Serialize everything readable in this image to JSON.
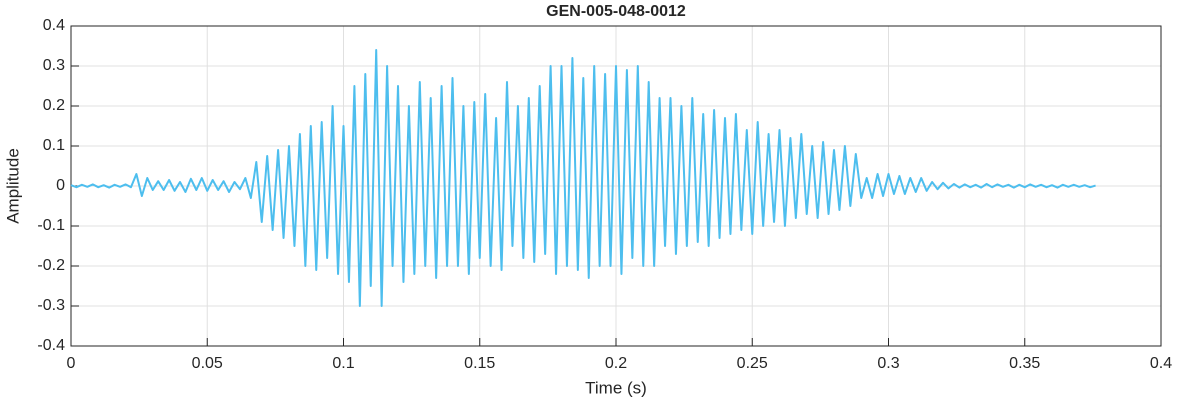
{
  "chart_data": {
    "type": "line",
    "title": "GEN-005-048-0012",
    "xlabel": "Time (s)",
    "ylabel": "Amplitude",
    "color": "#4dbeee",
    "grid": true,
    "xlim": [
      0,
      0.4
    ],
    "xticks": [
      0,
      0.05,
      0.1,
      0.15,
      0.2,
      0.25,
      0.3,
      0.35,
      0.4
    ],
    "ylim": [
      -0.4,
      0.4
    ],
    "yticks": [
      -0.4,
      -0.3,
      -0.2,
      -0.1,
      0,
      0.1,
      0.2,
      0.3,
      0.4
    ],
    "x": [
      0,
      0.002,
      0.004,
      0.006,
      0.008,
      0.01,
      0.012,
      0.014,
      0.016,
      0.018,
      0.02,
      0.022,
      0.024,
      0.026,
      0.028,
      0.03,
      0.032,
      0.034,
      0.036,
      0.038,
      0.04,
      0.042,
      0.044,
      0.046,
      0.048,
      0.05,
      0.052,
      0.054,
      0.056,
      0.058,
      0.06,
      0.062,
      0.064,
      0.066,
      0.068,
      0.07,
      0.072,
      0.074,
      0.076,
      0.078,
      0.08,
      0.082,
      0.084,
      0.086,
      0.088,
      0.09,
      0.092,
      0.094,
      0.096,
      0.098,
      0.1,
      0.102,
      0.104,
      0.106,
      0.108,
      0.11,
      0.112,
      0.114,
      0.116,
      0.118,
      0.12,
      0.122,
      0.124,
      0.126,
      0.128,
      0.13,
      0.132,
      0.134,
      0.136,
      0.138,
      0.14,
      0.142,
      0.144,
      0.146,
      0.148,
      0.15,
      0.152,
      0.154,
      0.156,
      0.158,
      0.16,
      0.162,
      0.164,
      0.166,
      0.168,
      0.17,
      0.172,
      0.174,
      0.176,
      0.178,
      0.18,
      0.182,
      0.184,
      0.186,
      0.188,
      0.19,
      0.192,
      0.194,
      0.196,
      0.198,
      0.2,
      0.202,
      0.204,
      0.206,
      0.208,
      0.21,
      0.212,
      0.214,
      0.216,
      0.218,
      0.22,
      0.222,
      0.224,
      0.226,
      0.228,
      0.23,
      0.232,
      0.234,
      0.236,
      0.238,
      0.24,
      0.242,
      0.244,
      0.246,
      0.248,
      0.25,
      0.252,
      0.254,
      0.256,
      0.258,
      0.26,
      0.262,
      0.264,
      0.266,
      0.268,
      0.27,
      0.272,
      0.274,
      0.276,
      0.278,
      0.28,
      0.282,
      0.284,
      0.286,
      0.288,
      0.29,
      0.292,
      0.294,
      0.296,
      0.298,
      0.3,
      0.302,
      0.304,
      0.306,
      0.308,
      0.31,
      0.312,
      0.314,
      0.316,
      0.318,
      0.32,
      0.322,
      0.324,
      0.326,
      0.328,
      0.33,
      0.332,
      0.334,
      0.336,
      0.338,
      0.34,
      0.342,
      0.344,
      0.346,
      0.348,
      0.35,
      0.352,
      0.354,
      0.356,
      0.358,
      0.36,
      0.362,
      0.364,
      0.366,
      0.368,
      0.37,
      0.372,
      0.374,
      0.376
    ],
    "values": [
      0.002,
      -0.003,
      0.003,
      -0.002,
      0.004,
      -0.003,
      0.002,
      -0.004,
      0.003,
      -0.002,
      0.004,
      -0.003,
      0.03,
      -0.025,
      0.02,
      -0.01,
      0.012,
      -0.01,
      0.015,
      -0.012,
      0.01,
      -0.015,
      0.018,
      -0.01,
      0.02,
      -0.012,
      0.015,
      -0.01,
      0.012,
      -0.015,
      0.01,
      -0.008,
      0.02,
      -0.03,
      0.06,
      -0.09,
      0.075,
      -0.11,
      0.09,
      -0.13,
      0.1,
      -0.15,
      0.13,
      -0.2,
      0.15,
      -0.21,
      0.16,
      -0.18,
      0.2,
      -0.22,
      0.15,
      -0.24,
      0.25,
      -0.3,
      0.28,
      -0.25,
      0.34,
      -0.3,
      0.3,
      -0.2,
      0.25,
      -0.24,
      0.2,
      -0.22,
      0.26,
      -0.2,
      0.22,
      -0.23,
      0.25,
      -0.2,
      0.27,
      -0.2,
      0.2,
      -0.22,
      0.21,
      -0.18,
      0.23,
      -0.2,
      0.17,
      -0.21,
      0.26,
      -0.15,
      0.2,
      -0.18,
      0.22,
      -0.19,
      0.25,
      -0.17,
      0.3,
      -0.22,
      0.3,
      -0.2,
      0.32,
      -0.21,
      0.27,
      -0.23,
      0.3,
      -0.2,
      0.28,
      -0.2,
      0.3,
      -0.22,
      0.29,
      -0.18,
      0.3,
      -0.2,
      0.26,
      -0.2,
      0.22,
      -0.15,
      0.22,
      -0.17,
      0.2,
      -0.15,
      0.22,
      -0.14,
      0.18,
      -0.15,
      0.19,
      -0.13,
      0.17,
      -0.12,
      0.18,
      -0.11,
      0.14,
      -0.12,
      0.16,
      -0.1,
      0.13,
      -0.09,
      0.14,
      -0.1,
      0.12,
      -0.08,
      0.13,
      -0.07,
      0.1,
      -0.08,
      0.11,
      -0.07,
      0.09,
      -0.06,
      0.1,
      -0.05,
      0.08,
      -0.03,
      0.02,
      -0.03,
      0.03,
      -0.025,
      0.03,
      -0.02,
      0.025,
      -0.02,
      0.02,
      -0.015,
      0.02,
      -0.012,
      0.01,
      -0.008,
      0.008,
      -0.006,
      0.005,
      -0.004,
      0.004,
      -0.003,
      0.003,
      -0.004,
      0.005,
      -0.003,
      0.004,
      -0.002,
      0.003,
      -0.004,
      0.003,
      -0.003,
      0.004,
      -0.002,
      0.003,
      -0.003,
      0.002,
      -0.004,
      0.003,
      -0.002,
      0.003,
      -0.002,
      0.002,
      -0.003,
      0.001
    ]
  }
}
